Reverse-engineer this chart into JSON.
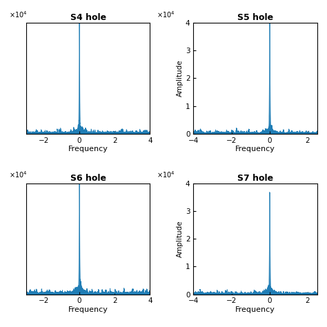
{
  "subplots": [
    {
      "title": "S4 hole",
      "xlim": [
        -3,
        4
      ],
      "xticks": [
        -2,
        0,
        2,
        4
      ],
      "ylim": [
        0,
        40000
      ],
      "yticks": [
        10000,
        20000,
        30000,
        40000
      ],
      "peak_amplitude": 38000,
      "noise_level": 300,
      "sidelobe_level": 2000,
      "show_ylabel": false,
      "show_yticklabels": false,
      "xlabel": "Frequency",
      "color": "#1f7db5",
      "seed": 10
    },
    {
      "title": "S5 hole",
      "xlim": [
        -4,
        2.5
      ],
      "xticks": [
        -4,
        -2,
        0,
        2
      ],
      "ylim": [
        0,
        40000
      ],
      "yticks": [
        0,
        10000,
        20000,
        30000,
        40000
      ],
      "peak_amplitude": 38000,
      "noise_level": 250,
      "sidelobe_level": 2000,
      "show_ylabel": true,
      "show_yticklabels": true,
      "xlabel": "Frequency",
      "color": "#1f7db5",
      "seed": 20
    },
    {
      "title": "S6 hole",
      "xlim": [
        -3,
        4
      ],
      "xticks": [
        -2,
        0,
        2,
        4
      ],
      "ylim": [
        0,
        40000
      ],
      "yticks": [
        10000,
        20000,
        30000,
        40000
      ],
      "peak_amplitude": 38000,
      "noise_level": 350,
      "sidelobe_level": 3000,
      "show_ylabel": false,
      "show_yticklabels": false,
      "xlabel": "Frequency",
      "color": "#1f7db5",
      "seed": 30
    },
    {
      "title": "S7 hole",
      "xlim": [
        -4,
        2.5
      ],
      "xticks": [
        -4,
        -2,
        0,
        2
      ],
      "ylim": [
        0,
        40000
      ],
      "yticks": [
        0,
        10000,
        20000,
        30000,
        40000
      ],
      "peak_amplitude": 34000,
      "noise_level": 250,
      "sidelobe_level": 1800,
      "show_ylabel": true,
      "show_yticklabels": true,
      "xlabel": "Frequency",
      "color": "#1f7db5",
      "seed": 40
    }
  ],
  "figsize": [
    4.74,
    4.74
  ],
  "dpi": 100
}
